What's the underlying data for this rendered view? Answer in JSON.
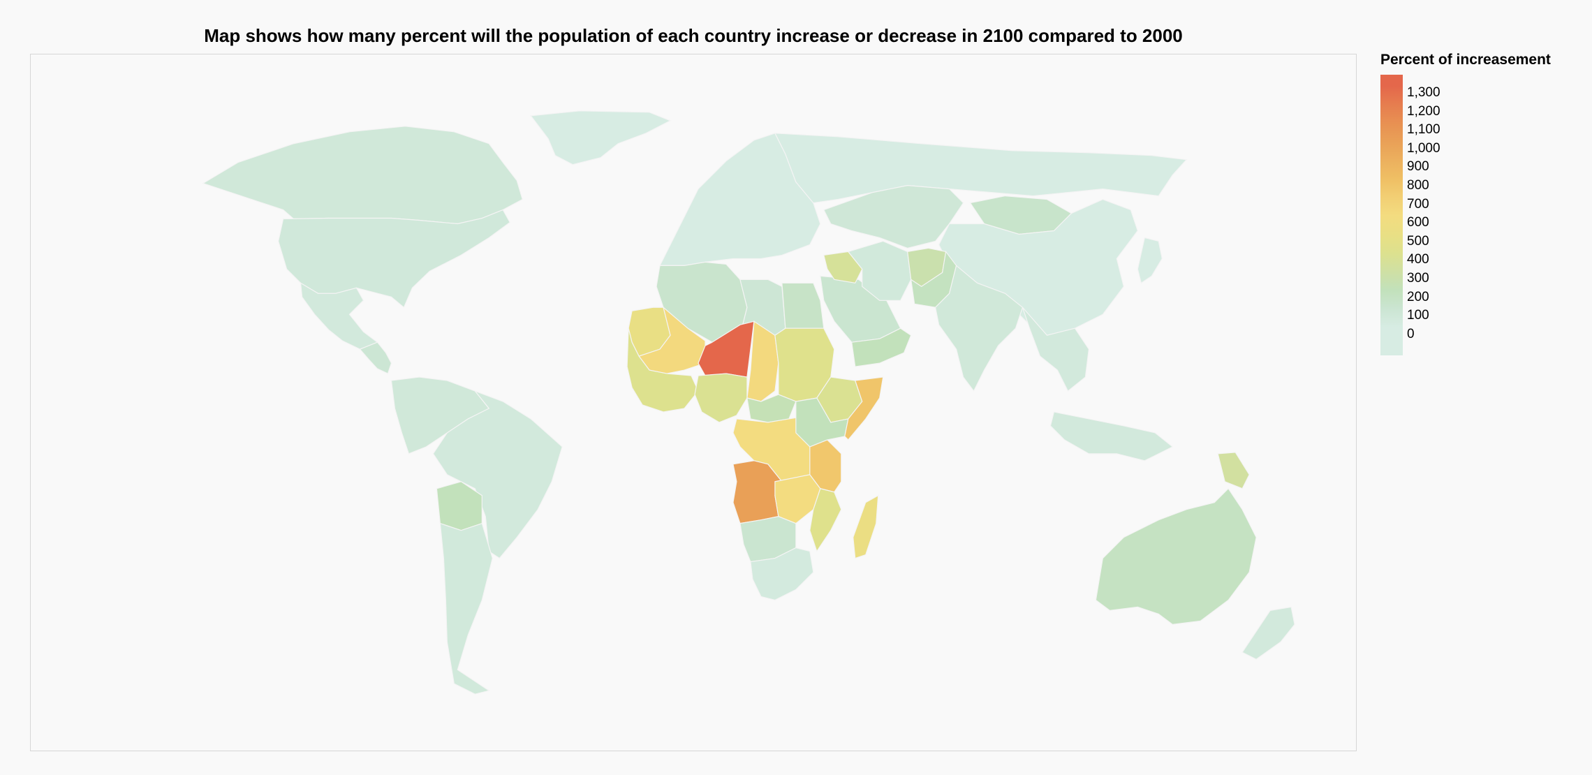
{
  "title": "Map shows how many percent will the population of each country increase or decrease in 2100 compared to 2000",
  "legend": {
    "title": "Percent of increasement",
    "labels": [
      "1,300",
      "1,200",
      "1,100",
      "1,000",
      "900",
      "800",
      "700",
      "600",
      "500",
      "400",
      "300",
      "200",
      "100",
      "0"
    ],
    "stops": [
      {
        "value": 0,
        "color": "#d7ece3"
      },
      {
        "value": 100,
        "color": "#cbe5d2"
      },
      {
        "value": 200,
        "color": "#c2e1bb"
      },
      {
        "value": 300,
        "color": "#cfe0a4"
      },
      {
        "value": 400,
        "color": "#dde18e"
      },
      {
        "value": 500,
        "color": "#e9df84"
      },
      {
        "value": 600,
        "color": "#f3dc80"
      },
      {
        "value": 700,
        "color": "#f2cf74"
      },
      {
        "value": 800,
        "color": "#efbf64"
      },
      {
        "value": 900,
        "color": "#ecb05e"
      },
      {
        "value": 1000,
        "color": "#e9a057"
      },
      {
        "value": 1100,
        "color": "#e89052"
      },
      {
        "value": 1200,
        "color": "#e67d4f"
      },
      {
        "value": 1300,
        "color": "#e4674b"
      }
    ]
  },
  "map_data": {
    "type": "choropleth",
    "measure": "Percent of increasement",
    "regions": [
      {
        "name": "Greenland",
        "value": 0
      },
      {
        "name": "Canada",
        "value": 60
      },
      {
        "name": "United States",
        "value": 55
      },
      {
        "name": "Mexico",
        "value": 40
      },
      {
        "name": "Central America",
        "value": 90
      },
      {
        "name": "South America North",
        "value": 60
      },
      {
        "name": "Brazil",
        "value": 40
      },
      {
        "name": "Bolivia",
        "value": 200
      },
      {
        "name": "Argentina",
        "value": 50
      },
      {
        "name": "Europe",
        "value": 0
      },
      {
        "name": "Russia",
        "value": 0
      },
      {
        "name": "Kazakhstan",
        "value": 70
      },
      {
        "name": "Mongolia",
        "value": 130
      },
      {
        "name": "China",
        "value": 0
      },
      {
        "name": "Algeria",
        "value": 120
      },
      {
        "name": "Libya",
        "value": 80
      },
      {
        "name": "Egypt",
        "value": 150
      },
      {
        "name": "Mauritania",
        "value": 500
      },
      {
        "name": "Mali",
        "value": 620
      },
      {
        "name": "Niger",
        "value": 1300
      },
      {
        "name": "Chad",
        "value": 620
      },
      {
        "name": "Sudan",
        "value": 420
      },
      {
        "name": "Nigeria",
        "value": 380
      },
      {
        "name": "West Coast",
        "value": 400
      },
      {
        "name": "Central African Republic",
        "value": 220
      },
      {
        "name": "DR Congo",
        "value": 600
      },
      {
        "name": "Angola",
        "value": 1000
      },
      {
        "name": "Zambia",
        "value": 600
      },
      {
        "name": "Tanzania",
        "value": 750
      },
      {
        "name": "Somalia",
        "value": 760
      },
      {
        "name": "Ethiopia",
        "value": 380
      },
      {
        "name": "Kenya",
        "value": 200
      },
      {
        "name": "Mozambique",
        "value": 420
      },
      {
        "name": "Madagascar",
        "value": 520
      },
      {
        "name": "Namibia Botswana",
        "value": 110
      },
      {
        "name": "South Africa",
        "value": 30
      },
      {
        "name": "Saudi Arabia",
        "value": 110
      },
      {
        "name": "Yemen Oman",
        "value": 200
      },
      {
        "name": "Iraq",
        "value": 350
      },
      {
        "name": "Iran",
        "value": 50
      },
      {
        "name": "Afghanistan",
        "value": 260
      },
      {
        "name": "Pakistan",
        "value": 180
      },
      {
        "name": "India",
        "value": 60
      },
      {
        "name": "Southeast Asia",
        "value": 40
      },
      {
        "name": "Indonesia",
        "value": 40
      },
      {
        "name": "Papua New Guinea",
        "value": 320
      },
      {
        "name": "Australia",
        "value": 170
      },
      {
        "name": "New Zealand",
        "value": 40
      }
    ]
  }
}
